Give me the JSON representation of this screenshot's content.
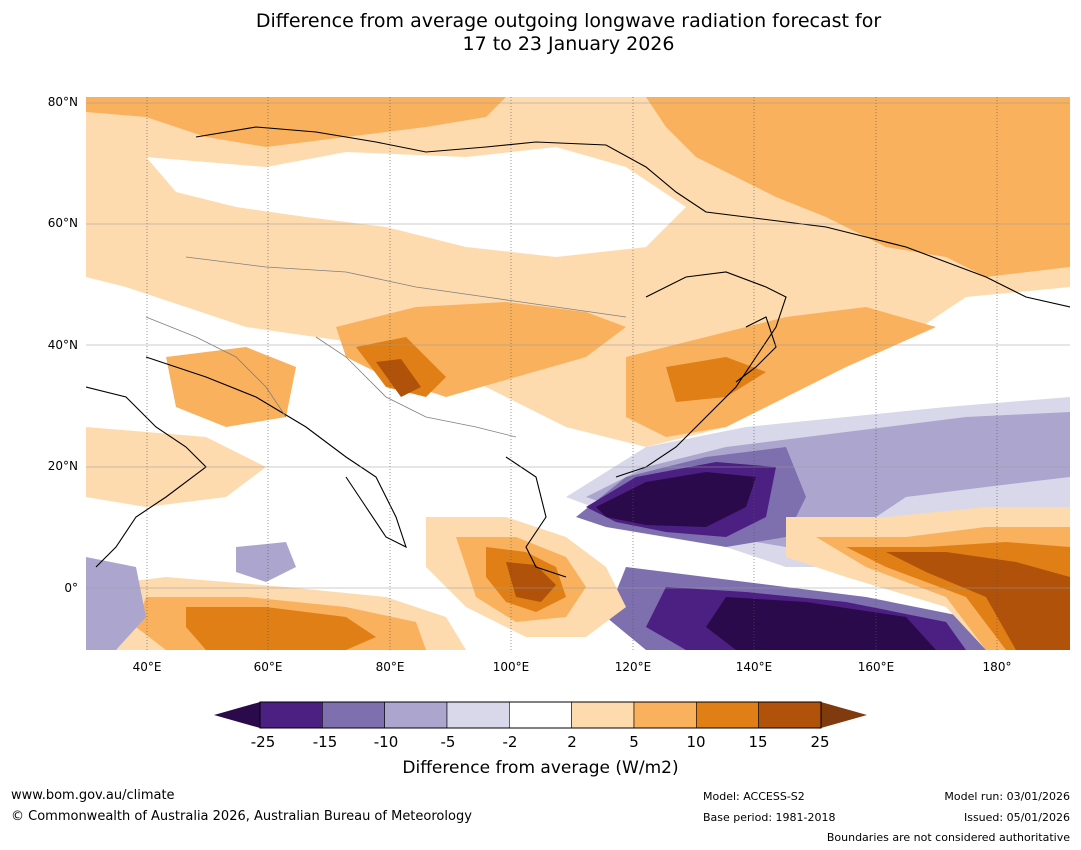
{
  "title": {
    "line1": "Difference from average outgoing longwave radiation forecast for",
    "line2": "17 to 23 January 2026"
  },
  "map": {
    "lat_labels": [
      "80°N",
      "60°N",
      "40°N",
      "20°N",
      "0°"
    ],
    "lon_labels": [
      "40°E",
      "60°E",
      "80°E",
      "100°E",
      "120°E",
      "140°E",
      "160°E",
      "180°"
    ],
    "extent": {
      "lon_min": 30,
      "lon_max": 192,
      "lat_min": -11,
      "lat_max": 80
    }
  },
  "colorbar": {
    "ticks": [
      "-25",
      "-15",
      "-10",
      "-5",
      "-2",
      "2",
      "5",
      "10",
      "15",
      "25"
    ],
    "colors": [
      "#4c1f82",
      "#7e6fae",
      "#aca6cf",
      "#d8d8ea",
      "#ffffff",
      "#fddbaf",
      "#f9b15e",
      "#e07f16",
      "#b05209"
    ],
    "low_color": "#2a0a4a",
    "high_color": "#7f3a0e",
    "label": "Difference from average (W/m2)"
  },
  "footer": {
    "website": "www.bom.gov.au/climate",
    "copyright": "© Commonwealth of Australia 2026, Australian Bureau of Meteorology",
    "model": "Model: ACCESS-S2",
    "base_period": "Base period: 1981-2018",
    "model_run": "Model run: 03/01/2026",
    "issued": "Issued: 05/01/2026",
    "disclaimer": "Boundaries are not considered authoritative"
  }
}
